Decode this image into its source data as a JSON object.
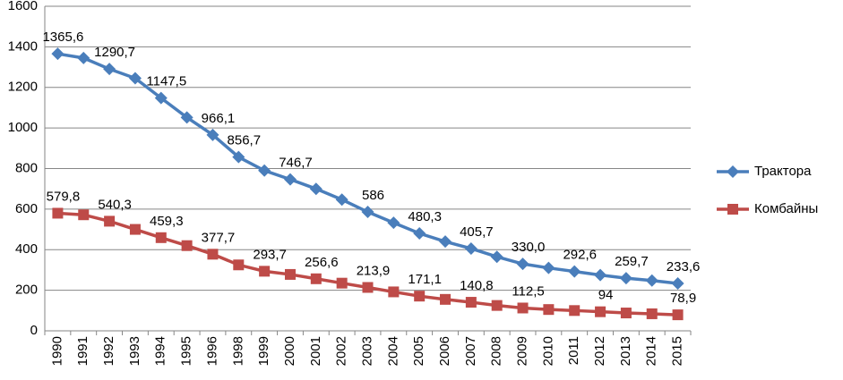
{
  "chart_data": {
    "type": "line",
    "categories": [
      "1990",
      "1991",
      "1992",
      "1993",
      "1994",
      "1995",
      "1996",
      "1998",
      "1999",
      "2000",
      "2001",
      "2002",
      "2003",
      "2004",
      "2005",
      "2006",
      "2007",
      "2008",
      "2009",
      "2010",
      "2011",
      "2012",
      "2013",
      "2014",
      "2015"
    ],
    "series": [
      {
        "name": "Трактора",
        "color": "#4a7ebb",
        "marker": "diamond",
        "values": [
          1365.6,
          1345,
          1290.7,
          1245,
          1147.5,
          1052,
          966.1,
          856.7,
          790,
          746.7,
          700,
          647,
          586,
          533,
          480.3,
          440,
          405.7,
          365,
          330.0,
          310,
          292.6,
          275,
          259.7,
          248,
          233.6
        ],
        "value_labels": [
          "1365,6",
          null,
          "1290,7",
          null,
          "1147,5",
          null,
          "966,1",
          "856,7",
          null,
          "746,7",
          null,
          null,
          "586",
          null,
          "480,3",
          null,
          "405,7",
          null,
          "330,0",
          null,
          "292,6",
          null,
          "259,7",
          null,
          "233,6"
        ]
      },
      {
        "name": "Комбайны",
        "color": "#be4b48",
        "marker": "square",
        "values": [
          579.8,
          572,
          540.3,
          500,
          459.3,
          420,
          377.7,
          325,
          293.7,
          278,
          256.6,
          235,
          213.9,
          192,
          171.1,
          155,
          140.8,
          125,
          112.5,
          105,
          100,
          94,
          88,
          84,
          78.9
        ],
        "value_labels": [
          "579,8",
          null,
          "540,3",
          null,
          "459,3",
          null,
          "377,7",
          null,
          "293,7",
          null,
          "256,6",
          null,
          "213,9",
          null,
          "171,1",
          null,
          "140,8",
          null,
          "112,5",
          null,
          null,
          "94",
          null,
          null,
          "78,9"
        ]
      }
    ],
    "ylim": [
      0,
      1600
    ],
    "yticks": [
      0,
      200,
      400,
      600,
      800,
      1000,
      1200,
      1400,
      1600
    ],
    "grid": true,
    "legend": "right"
  }
}
